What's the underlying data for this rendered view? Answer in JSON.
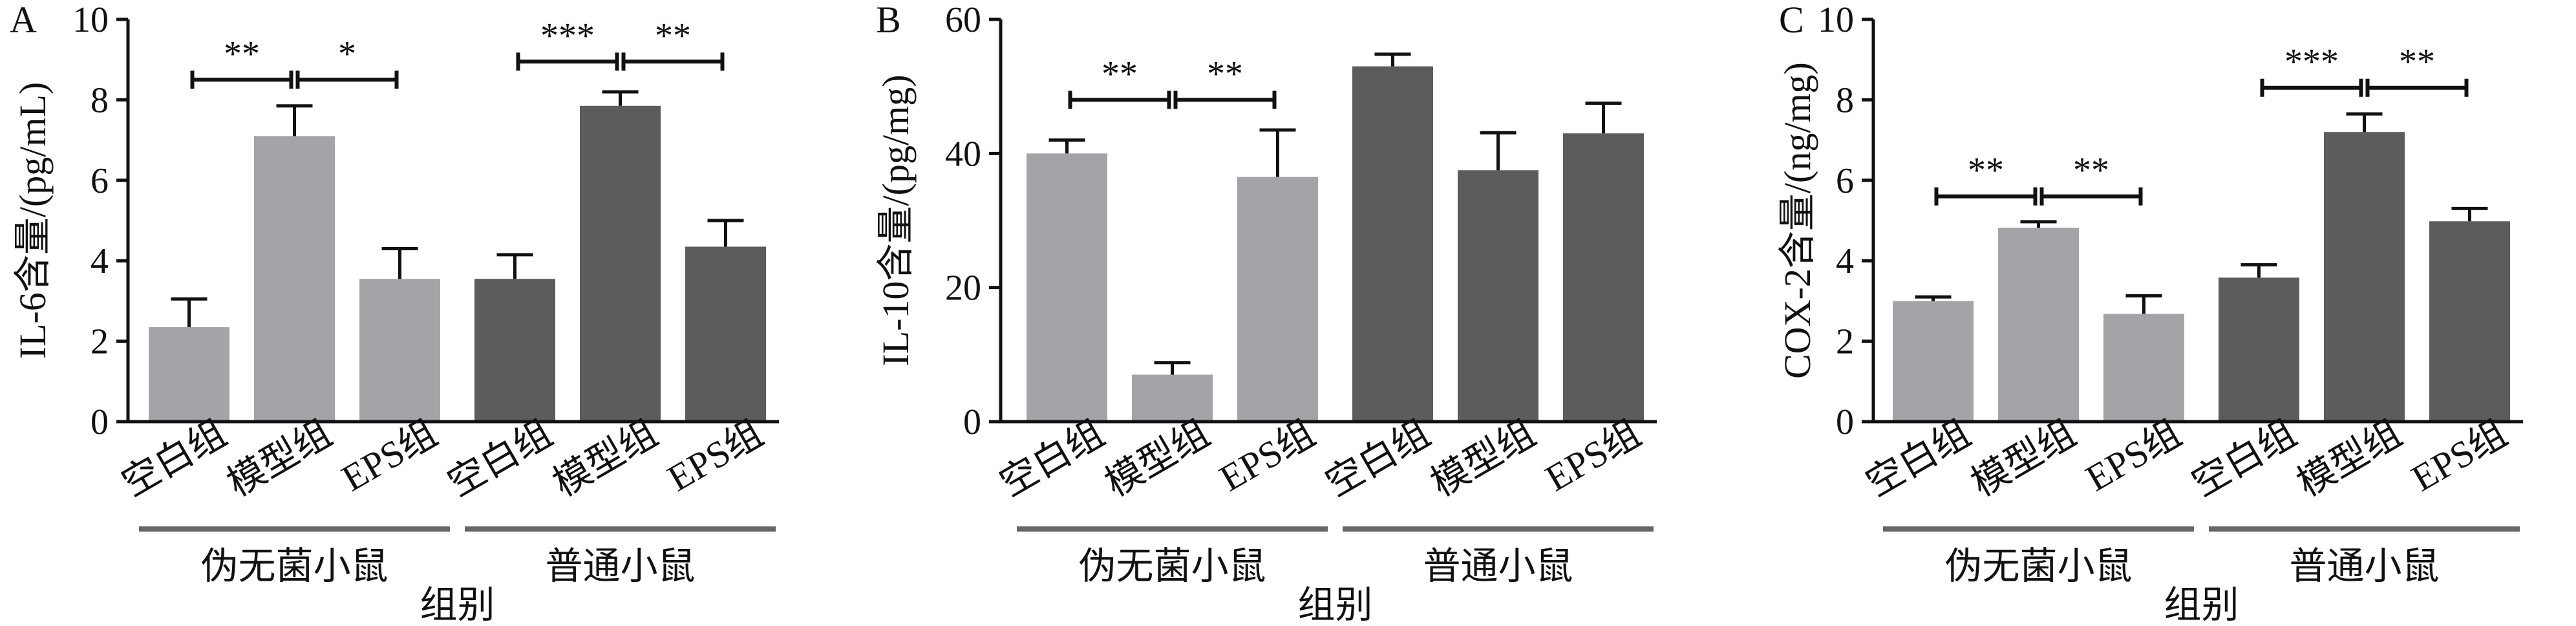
{
  "colors": {
    "pseudo_germ_free": "#a4a3a8",
    "normal": "#5b5c5c",
    "axis": "#111111"
  },
  "chart_data": [
    {
      "type": "bar",
      "panel_label": "A",
      "ylabel": "IL-6含量/(pg/mL)",
      "xlabel": "组别",
      "ylim": [
        0,
        10
      ],
      "yticks": [
        0,
        2,
        4,
        6,
        8,
        10
      ],
      "categories": [
        "空白组",
        "模型组",
        "EPS组",
        "空白组",
        "模型组",
        "EPS组"
      ],
      "groups": [
        {
          "name": "伪无菌小鼠",
          "indices": [
            0,
            1,
            2
          ],
          "color_key": "pseudo_germ_free"
        },
        {
          "name": "普通小鼠",
          "indices": [
            3,
            4,
            5
          ],
          "color_key": "normal"
        }
      ],
      "values": [
        2.35,
        7.1,
        3.55,
        3.55,
        7.85,
        4.35
      ],
      "errors": [
        0.7,
        0.75,
        0.75,
        0.6,
        0.35,
        0.65
      ],
      "significance": [
        {
          "from": 0,
          "to": 1,
          "label": "**",
          "y": 8.5
        },
        {
          "from": 1,
          "to": 2,
          "label": "*",
          "y": 8.5
        },
        {
          "from": 3,
          "to": 4,
          "label": "***",
          "y": 8.95
        },
        {
          "from": 4,
          "to": 5,
          "label": "**",
          "y": 8.95
        }
      ]
    },
    {
      "type": "bar",
      "panel_label": "B",
      "ylabel": "IL-10含量/(pg/mg)",
      "xlabel": "组别",
      "ylim": [
        0,
        60
      ],
      "yticks": [
        0,
        20,
        40,
        60
      ],
      "categories": [
        "空白组",
        "模型组",
        "EPS组",
        "空白组",
        "模型组",
        "EPS组"
      ],
      "groups": [
        {
          "name": "伪无菌小鼠",
          "indices": [
            0,
            1,
            2
          ],
          "color_key": "pseudo_germ_free"
        },
        {
          "name": "普通小鼠",
          "indices": [
            3,
            4,
            5
          ],
          "color_key": "normal"
        }
      ],
      "values": [
        40,
        7,
        36.5,
        53,
        37.5,
        43
      ],
      "errors": [
        2,
        1.8,
        7,
        1.8,
        5.6,
        4.5
      ],
      "significance": [
        {
          "from": 0,
          "to": 1,
          "label": "**",
          "y": 48
        },
        {
          "from": 1,
          "to": 2,
          "label": "**",
          "y": 48
        }
      ]
    },
    {
      "type": "bar",
      "panel_label": "C",
      "ylabel": "COX-2含量/(ng/mg)",
      "xlabel": "组别",
      "ylim": [
        0,
        10
      ],
      "yticks": [
        0,
        2,
        4,
        6,
        8,
        10
      ],
      "categories": [
        "空白组",
        "模型组",
        "EPS组",
        "空白组",
        "模型组",
        "EPS组"
      ],
      "groups": [
        {
          "name": "伪无菌小鼠",
          "indices": [
            0,
            1,
            2
          ],
          "color_key": "pseudo_germ_free"
        },
        {
          "name": "普通小鼠",
          "indices": [
            3,
            4,
            5
          ],
          "color_key": "normal"
        }
      ],
      "values": [
        3,
        4.82,
        2.68,
        3.58,
        7.2,
        4.98
      ],
      "errors": [
        0.1,
        0.15,
        0.45,
        0.32,
        0.45,
        0.32
      ],
      "significance": [
        {
          "from": 0,
          "to": 1,
          "label": "**",
          "y": 5.6
        },
        {
          "from": 1,
          "to": 2,
          "label": "**",
          "y": 5.6
        },
        {
          "from": 3,
          "to": 4,
          "label": "***",
          "y": 8.3
        },
        {
          "from": 4,
          "to": 5,
          "label": "**",
          "y": 8.3
        }
      ]
    }
  ]
}
